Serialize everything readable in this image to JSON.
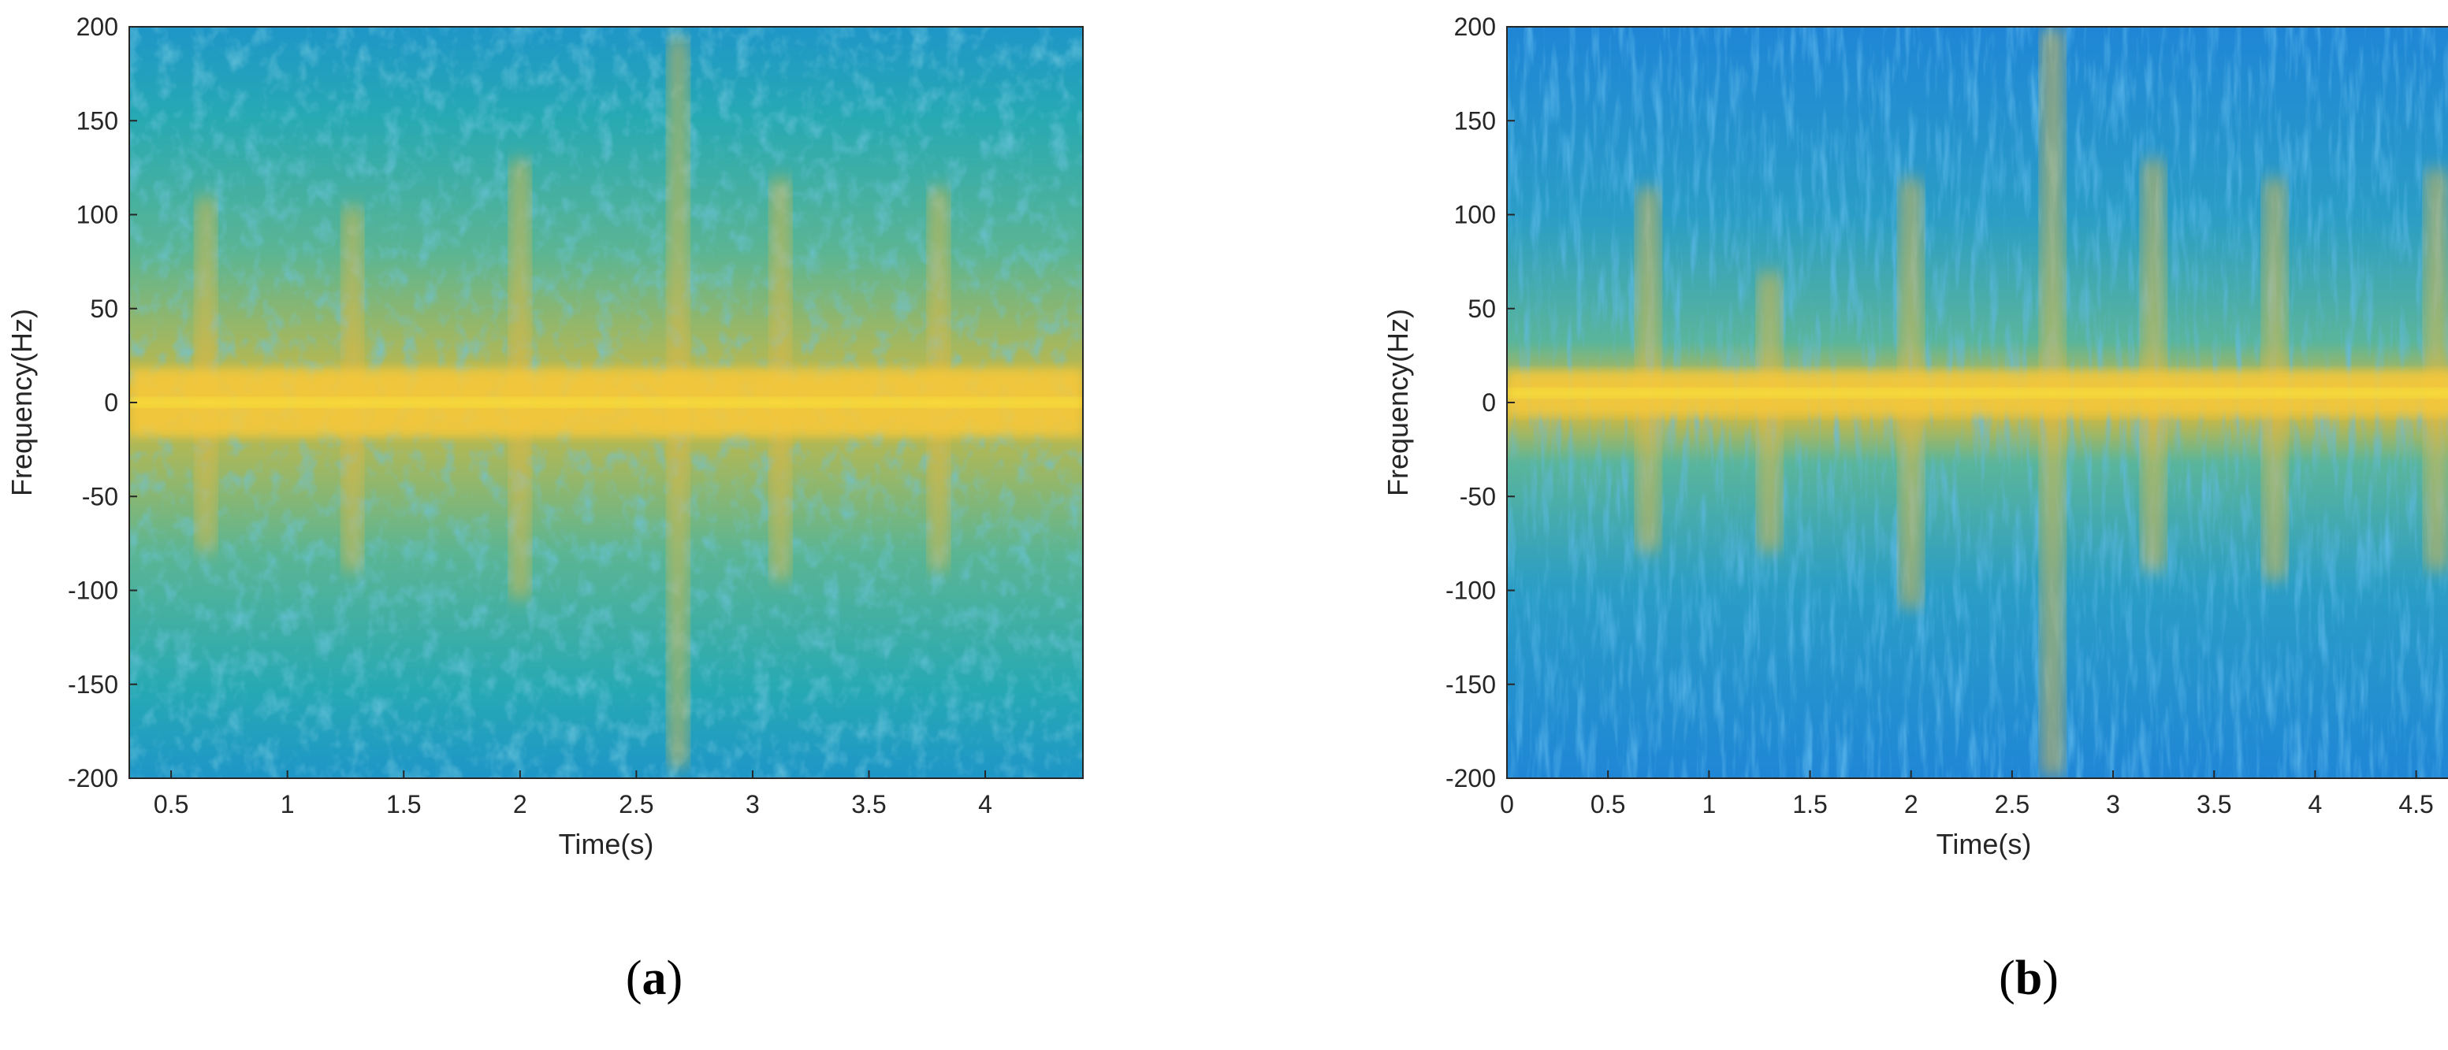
{
  "chart_data": [
    {
      "id": "a",
      "type": "heatmap",
      "caption": "a",
      "xlabel": "Time(s)",
      "ylabel": "Frequency(Hz)",
      "xlim": [
        0.32,
        4.42
      ],
      "ylim": [
        -200,
        200
      ],
      "xticks": [
        0.5,
        1,
        1.5,
        2,
        2.5,
        3,
        3.5,
        4
      ],
      "xtick_labels": [
        "0.5",
        "1",
        "1.5",
        "2",
        "2.5",
        "3",
        "3.5",
        "4"
      ],
      "yticks": [
        -200,
        -150,
        -100,
        -50,
        0,
        50,
        100,
        150,
        200
      ],
      "ytick_labels": [
        "-200",
        "-150",
        "-100",
        "-50",
        "0",
        "50",
        "100",
        "150",
        "200"
      ],
      "colormap": [
        "#2a7fd8",
        "#1d9ebd",
        "#3cae9a",
        "#8cbc6a",
        "#d9b33a",
        "#f5c33b",
        "#f9e93a"
      ],
      "band_center_hz": 0,
      "band_halfwidth_hz": 18,
      "flashes": [
        {
          "t": 0.65,
          "top": 110,
          "bottom": -80
        },
        {
          "t": 1.28,
          "top": 105,
          "bottom": -90
        },
        {
          "t": 2.0,
          "top": 130,
          "bottom": -105
        },
        {
          "t": 2.68,
          "top": 195,
          "bottom": -195
        },
        {
          "t": 3.12,
          "top": 120,
          "bottom": -95
        },
        {
          "t": 3.8,
          "top": 115,
          "bottom": -90
        }
      ]
    },
    {
      "id": "b",
      "type": "heatmap",
      "caption": "b",
      "xlabel": "Time(s)",
      "ylabel": "Frequency(Hz)",
      "xlim": [
        0,
        4.72
      ],
      "ylim": [
        -200,
        200
      ],
      "xticks": [
        0,
        0.5,
        1,
        1.5,
        2,
        2.5,
        3,
        3.5,
        4,
        4.5
      ],
      "xtick_labels": [
        "0",
        "0.5",
        "1",
        "1.5",
        "2",
        "2.5",
        "3",
        "3.5",
        "4",
        "4.5"
      ],
      "yticks": [
        -200,
        -150,
        -100,
        -50,
        0,
        50,
        100,
        150,
        200
      ],
      "ytick_labels": [
        "-200",
        "-150",
        "-100",
        "-50",
        "0",
        "50",
        "100",
        "150",
        "200"
      ],
      "colormap": [
        "#2a7fd8",
        "#1d9ebd",
        "#3cae9a",
        "#8cbc6a",
        "#d9b33a",
        "#f5c33b",
        "#f9e93a"
      ],
      "band_center_hz": 5,
      "band_halfwidth_hz": 12,
      "flashes": [
        {
          "t": 0.7,
          "top": 115,
          "bottom": -80
        },
        {
          "t": 1.3,
          "top": 70,
          "bottom": -80
        },
        {
          "t": 2.0,
          "top": 120,
          "bottom": -110
        },
        {
          "t": 2.7,
          "top": 200,
          "bottom": -200
        },
        {
          "t": 3.2,
          "top": 130,
          "bottom": -90
        },
        {
          "t": 3.8,
          "top": 120,
          "bottom": -95
        },
        {
          "t": 4.6,
          "top": 125,
          "bottom": -90
        }
      ]
    }
  ]
}
